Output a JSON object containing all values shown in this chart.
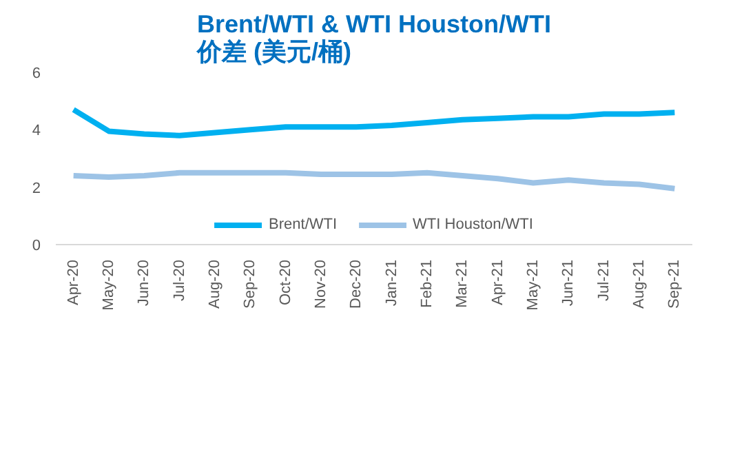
{
  "chart_data": {
    "type": "line",
    "title": "Brent/WTI & WTI Houston/WTI\n价差 (美元/桶)",
    "categories": [
      "Apr-20",
      "May-20",
      "Jun-20",
      "Jul-20",
      "Aug-20",
      "Sep-20",
      "Oct-20",
      "Nov-20",
      "Dec-20",
      "Jan-21",
      "Feb-21",
      "Mar-21",
      "Apr-21",
      "May-21",
      "Jun-21",
      "Jul-21",
      "Aug-21",
      "Sep-21"
    ],
    "series": [
      {
        "name": "Brent/WTI",
        "color": "#00b0f0",
        "values": [
          4.7,
          3.95,
          3.85,
          3.8,
          3.9,
          4.0,
          4.1,
          4.1,
          4.1,
          4.15,
          4.25,
          4.35,
          4.4,
          4.45,
          4.45,
          4.55,
          4.55,
          4.6
        ]
      },
      {
        "name": "WTI Houston/WTI",
        "color": "#9dc3e6",
        "values": [
          2.4,
          2.35,
          2.4,
          2.5,
          2.5,
          2.5,
          2.5,
          2.45,
          2.45,
          2.45,
          2.5,
          2.4,
          2.3,
          2.15,
          2.25,
          2.15,
          2.1,
          1.95
        ]
      }
    ],
    "ylim": [
      0,
      6
    ],
    "yticks": [
      0,
      2,
      4,
      6
    ],
    "grid": false,
    "legend": "bottom",
    "marker": "none",
    "line_style": "solid"
  }
}
